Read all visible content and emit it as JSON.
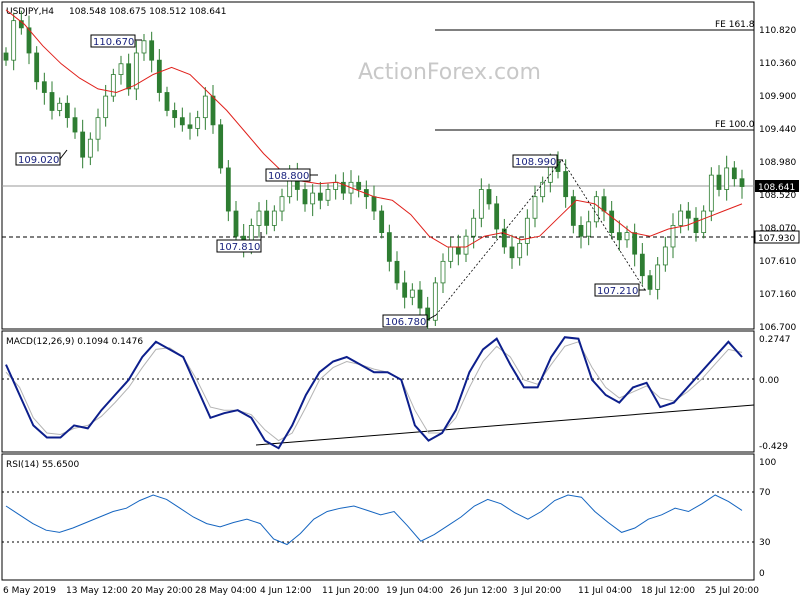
{
  "chart_data": [
    {
      "type": "candlestick",
      "title": "USDJPY,H4",
      "ohlc_header": "108.548 108.675 108.512 108.641",
      "ylim": [
        106.5,
        111.3
      ],
      "y_ticks": [
        "110.820",
        "110.360",
        "109.900",
        "109.440",
        "108.980",
        "108.520",
        "108.070",
        "107.610",
        "107.160",
        "106.700"
      ],
      "x_ticks": [
        "6 May 2019",
        "13 May 12:00",
        "20 May 20:00",
        "28 May 04:00",
        "4 Jun 12:00",
        "11 Jun 20:00",
        "19 Jun 04:00",
        "26 Jun 12:00",
        "3 Jul 20:00",
        "11 Jul 04:00",
        "18 Jul 12:00",
        "25 Jul 20:00"
      ],
      "close_series": [
        110.4,
        110.95,
        110.85,
        110.5,
        110.1,
        109.95,
        109.7,
        109.8,
        109.6,
        109.4,
        109.05,
        109.3,
        109.6,
        109.9,
        110.2,
        110.35,
        110.0,
        110.5,
        110.67,
        110.4,
        109.95,
        109.7,
        109.6,
        109.5,
        109.45,
        109.6,
        109.9,
        109.5,
        108.9,
        108.3,
        107.95,
        107.81,
        108.1,
        108.3,
        108.1,
        108.3,
        108.5,
        108.8,
        108.6,
        108.4,
        108.55,
        108.45,
        108.6,
        108.7,
        108.55,
        108.7,
        108.6,
        108.5,
        108.3,
        108.0,
        107.6,
        107.3,
        107.1,
        107.2,
        106.95,
        106.78,
        107.3,
        107.6,
        107.8,
        107.7,
        107.95,
        108.2,
        108.6,
        108.4,
        108.05,
        107.8,
        107.65,
        107.85,
        108.2,
        108.5,
        108.7,
        108.99,
        108.85,
        108.5,
        108.1,
        107.95,
        108.15,
        108.5,
        108.3,
        108.0,
        107.9,
        108.0,
        107.7,
        107.4,
        107.21,
        107.55,
        107.8,
        108.1,
        108.3,
        108.2,
        108.0,
        108.3,
        108.8,
        108.6,
        108.9,
        108.75,
        108.641
      ],
      "ma_series": [
        111.1,
        110.9,
        110.6,
        110.35,
        110.15,
        110.0,
        109.95,
        110.05,
        110.2,
        110.3,
        110.2,
        109.95,
        109.7,
        109.4,
        109.1,
        108.85,
        108.72,
        108.68,
        108.7,
        108.6,
        108.5,
        108.45,
        108.25,
        107.95,
        107.8,
        107.8,
        107.95,
        108.0,
        107.9,
        107.95,
        108.2,
        108.45,
        108.4,
        108.2,
        108.0,
        107.95,
        108.05,
        108.1,
        108.2,
        108.3,
        108.4
      ],
      "ma_label": "",
      "levels": [
        {
          "name": "FE 161.8",
          "value": 110.82
        },
        {
          "name": "FE 100.0",
          "value": 109.44
        },
        {
          "name": "",
          "value": 108.641,
          "label": "108.641"
        },
        {
          "name": "",
          "value": 107.93,
          "label": "107.930"
        }
      ],
      "annotations": [
        "110.670",
        "109.020",
        "108.800",
        "107.810",
        "106.780",
        "108.990",
        "107.210"
      ]
    },
    {
      "type": "line",
      "title": "MACD(12,26,9) 0.1094 0.1476",
      "y_ticks": [
        "0.2747",
        "0.00",
        "-0.429"
      ],
      "series": [
        {
          "name": "",
          "values": [
            0.1,
            -0.1,
            -0.3,
            -0.38,
            -0.38,
            -0.3,
            -0.32,
            -0.2,
            -0.1,
            0.0,
            0.15,
            0.25,
            0.2,
            0.15,
            -0.05,
            -0.25,
            -0.22,
            -0.2,
            -0.25,
            -0.4,
            -0.45,
            -0.3,
            -0.1,
            0.05,
            0.12,
            0.15,
            0.1,
            0.05,
            0.05,
            0.0,
            -0.3,
            -0.4,
            -0.35,
            -0.2,
            0.05,
            0.2,
            0.27,
            0.1,
            -0.05,
            -0.05,
            0.15,
            0.28,
            0.27,
            0.0,
            -0.1,
            -0.15,
            -0.05,
            -0.02,
            -0.18,
            -0.15,
            -0.05,
            0.05,
            0.15,
            0.25,
            0.15
          ]
        },
        {
          "name": "",
          "values": [
            0.05,
            -0.05,
            -0.25,
            -0.35,
            -0.36,
            -0.32,
            -0.3,
            -0.24,
            -0.15,
            -0.05,
            0.08,
            0.2,
            0.21,
            0.15,
            0.0,
            -0.18,
            -0.2,
            -0.2,
            -0.23,
            -0.33,
            -0.4,
            -0.35,
            -0.18,
            0.0,
            0.08,
            0.12,
            0.1,
            0.07,
            0.05,
            0.0,
            -0.2,
            -0.35,
            -0.35,
            -0.25,
            -0.05,
            0.12,
            0.22,
            0.15,
            0.0,
            -0.03,
            0.1,
            0.22,
            0.25,
            0.08,
            -0.05,
            -0.12,
            -0.08,
            -0.04,
            -0.12,
            -0.14,
            -0.08,
            0.0,
            0.1,
            0.2,
            0.18
          ]
        }
      ]
    },
    {
      "type": "line",
      "title": "RSI(14) 55.6500",
      "ylim": [
        0,
        100
      ],
      "y_ticks": [
        "100",
        "70",
        "30",
        "0"
      ],
      "series": [
        {
          "name": "",
          "values": [
            60,
            52,
            44,
            38,
            36,
            40,
            45,
            50,
            55,
            58,
            65,
            70,
            66,
            58,
            50,
            44,
            41,
            45,
            48,
            44,
            30,
            25,
            35,
            48,
            55,
            58,
            60,
            56,
            52,
            55,
            42,
            28,
            34,
            42,
            50,
            60,
            66,
            62,
            54,
            48,
            55,
            65,
            70,
            68,
            55,
            45,
            36,
            40,
            48,
            52,
            58,
            55,
            62,
            70,
            64,
            56
          ]
        }
      ]
    }
  ],
  "watermark": "ActionForex.com"
}
